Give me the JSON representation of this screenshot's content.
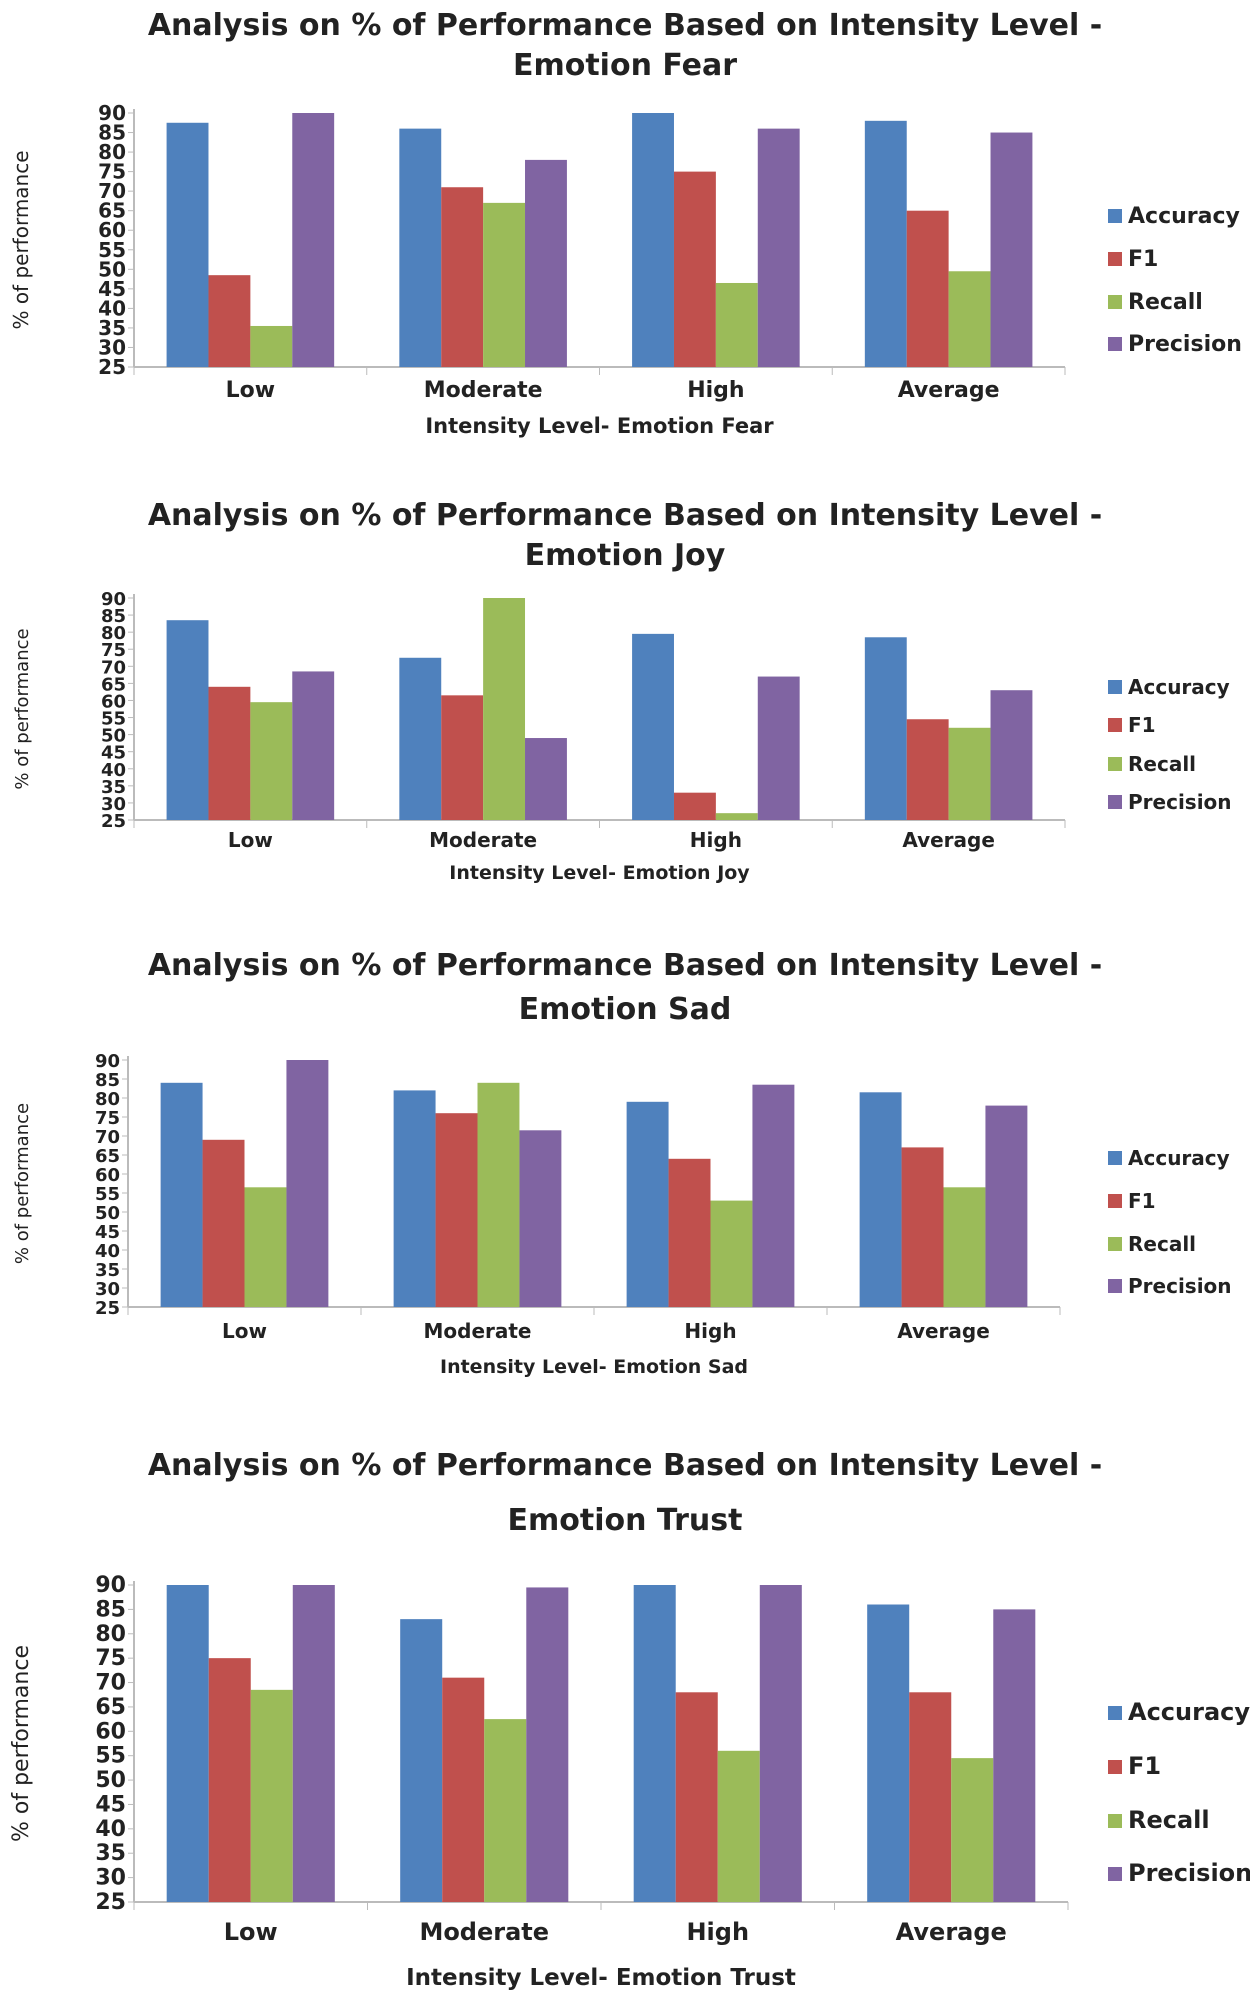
{
  "chart_data": [
    {
      "type": "bar",
      "title": "Analysis on % of Performance Based on Intensity Level - Emotion Fear",
      "title_lines": [
        "Analysis on % of Performance Based on Intensity Level -",
        "Emotion Fear"
      ],
      "xlabel": "Intensity Level- Emotion Fear",
      "ylabel": "% of performance",
      "categories": [
        "Low",
        "Moderate",
        "High",
        "Average"
      ],
      "ylim": [
        25,
        90
      ],
      "yticks": [
        25,
        30,
        35,
        40,
        45,
        50,
        55,
        60,
        65,
        70,
        75,
        80,
        85,
        90
      ],
      "grid": false,
      "legend": "right",
      "series": [
        {
          "name": "Accuracy",
          "color": "#4f81bd",
          "values": [
            87.5,
            86,
            90,
            88
          ]
        },
        {
          "name": "F1",
          "color": "#c0504d",
          "values": [
            48.5,
            71,
            75,
            65
          ]
        },
        {
          "name": "Recall",
          "color": "#9bbb59",
          "values": [
            35.5,
            67,
            46.5,
            49.5
          ]
        },
        {
          "name": "Precision",
          "color": "#8064a2",
          "values": [
            90,
            78,
            86,
            85
          ]
        }
      ]
    },
    {
      "type": "bar",
      "title": "Analysis on % of Performance Based on Intensity Level - Emotion Joy",
      "title_lines": [
        "Analysis on % of Performance Based on Intensity Level -",
        "Emotion Joy"
      ],
      "xlabel": "Intensity Level- Emotion Joy",
      "ylabel": "% of performance",
      "categories": [
        "Low",
        "Moderate",
        "High",
        "Average"
      ],
      "ylim": [
        25,
        90
      ],
      "yticks": [
        25,
        30,
        35,
        40,
        45,
        50,
        55,
        60,
        65,
        70,
        75,
        80,
        85,
        90
      ],
      "grid": false,
      "legend": "right",
      "series": [
        {
          "name": "Accuracy",
          "color": "#4f81bd",
          "values": [
            83.5,
            72.5,
            79.5,
            78.5
          ]
        },
        {
          "name": "F1",
          "color": "#c0504d",
          "values": [
            64,
            61.5,
            33,
            54.5
          ]
        },
        {
          "name": "Recall",
          "color": "#9bbb59",
          "values": [
            59.5,
            90,
            27,
            52
          ]
        },
        {
          "name": "Precision",
          "color": "#8064a2",
          "values": [
            68.5,
            49,
            67,
            63
          ]
        }
      ]
    },
    {
      "type": "bar",
      "title": "Analysis on % of Performance Based on Intensity Level - Emotion Sad",
      "title_lines": [
        "Analysis on % of Performance Based on Intensity Level -",
        "Emotion Sad"
      ],
      "xlabel": "Intensity Level- Emotion Sad",
      "ylabel": "% of performance",
      "categories": [
        "Low",
        "Moderate",
        "High",
        "Average"
      ],
      "ylim": [
        25,
        90
      ],
      "yticks": [
        25,
        30,
        35,
        40,
        45,
        50,
        55,
        60,
        65,
        70,
        75,
        80,
        85,
        90
      ],
      "grid": false,
      "legend": "right",
      "series": [
        {
          "name": "Accuracy",
          "color": "#4f81bd",
          "values": [
            84,
            82,
            79,
            81.5
          ]
        },
        {
          "name": "F1",
          "color": "#c0504d",
          "values": [
            69,
            76,
            64,
            67
          ]
        },
        {
          "name": "Recall",
          "color": "#9bbb59",
          "values": [
            56.5,
            84,
            53,
            56.5
          ]
        },
        {
          "name": "Precision",
          "color": "#8064a2",
          "values": [
            90,
            71.5,
            83.5,
            78
          ]
        }
      ]
    },
    {
      "type": "bar",
      "title": "Analysis on % of Performance Based on Intensity Level - Emotion Trust",
      "title_lines": [
        "Analysis on % of Performance Based on Intensity Level -",
        "Emotion Trust"
      ],
      "xlabel": "Intensity Level- Emotion Trust",
      "ylabel": "% of performance",
      "categories": [
        "Low",
        "Moderate",
        "High",
        "Average"
      ],
      "ylim": [
        25,
        90
      ],
      "yticks": [
        25,
        30,
        35,
        40,
        45,
        50,
        55,
        60,
        65,
        70,
        75,
        80,
        85,
        90
      ],
      "grid": false,
      "legend": "right",
      "series": [
        {
          "name": "Accuracy",
          "color": "#4f81bd",
          "values": [
            90,
            83,
            90,
            86
          ]
        },
        {
          "name": "F1",
          "color": "#c0504d",
          "values": [
            75,
            71,
            68,
            68
          ]
        },
        {
          "name": "Recall",
          "color": "#9bbb59",
          "values": [
            68.5,
            62.5,
            56,
            54.5
          ]
        },
        {
          "name": "Precision",
          "color": "#8064a2",
          "values": [
            90,
            89.5,
            90,
            85
          ]
        }
      ]
    }
  ]
}
